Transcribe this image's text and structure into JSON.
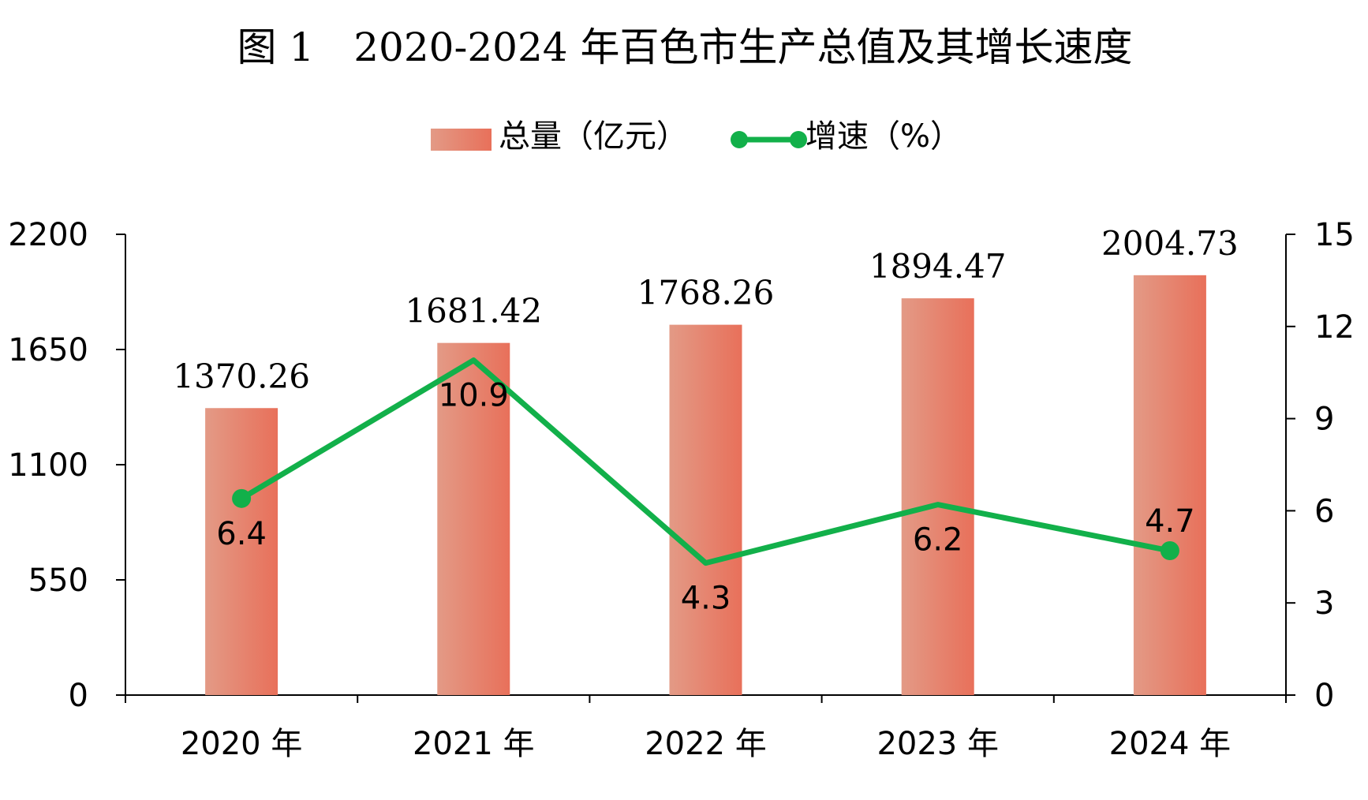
{
  "chart_data": {
    "type": "bar+line",
    "title": "图 1　2020-2024 年百色市生产总值及其增长速度",
    "categories": [
      "2020 年",
      "2021 年",
      "2022 年",
      "2023 年",
      "2024 年"
    ],
    "series": [
      {
        "name": "总量（亿元）",
        "type": "bar",
        "axis": "left",
        "values": [
          1370.26,
          1681.42,
          1768.26,
          1894.47,
          2004.73
        ],
        "labels": [
          "1370.26",
          "1681.42",
          "1768.26",
          "1894.47",
          "2004.73"
        ]
      },
      {
        "name": "增速（%）",
        "type": "line",
        "axis": "right",
        "values": [
          6.4,
          10.9,
          4.3,
          6.2,
          4.7
        ],
        "labels": [
          "6.4",
          "10.9",
          "4.3",
          "6.2",
          "4.7"
        ]
      }
    ],
    "left_axis": {
      "min": 0,
      "max": 2200,
      "ticks": [
        "0",
        "550",
        "1100",
        "1650",
        "2200"
      ]
    },
    "right_axis": {
      "min": 0,
      "max": 15,
      "ticks": [
        "0",
        "3",
        "6",
        "9",
        "12",
        "15"
      ]
    },
    "grid": false,
    "legend": "top-center",
    "colors": {
      "bar_light": "#e39a86",
      "bar_dark": "#e8705a",
      "line": "#12b04a",
      "axis": "#000000"
    }
  }
}
